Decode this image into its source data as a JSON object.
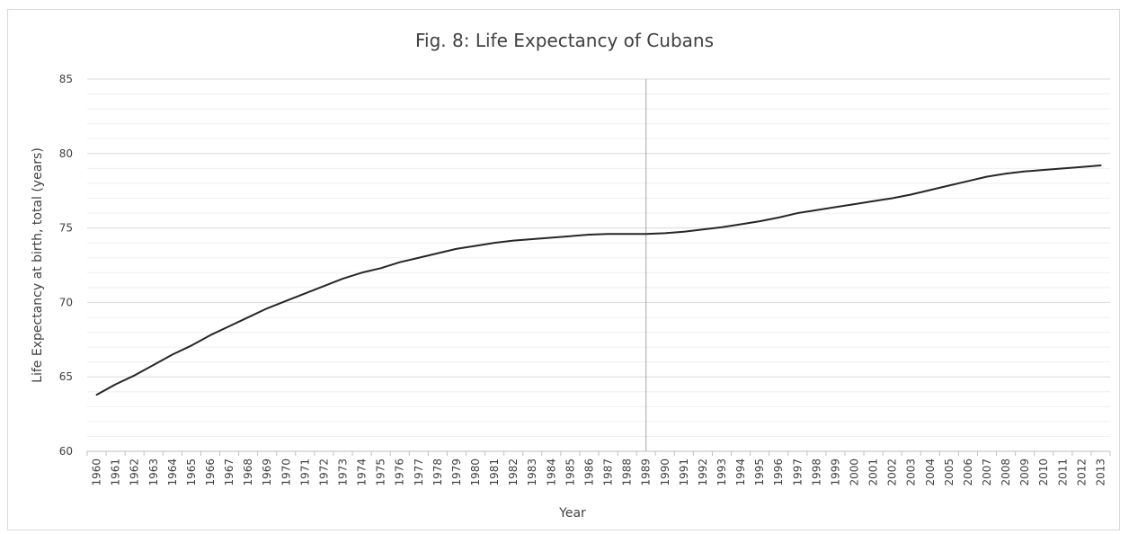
{
  "chart_data": {
    "type": "line",
    "title": "Fig. 8: Life Expectancy of Cubans",
    "xlabel": "Year",
    "ylabel": "Life Expectancy at birth, total (years)",
    "ylim": [
      60,
      85
    ],
    "y_ticks": [
      "60",
      "65",
      "70",
      "75",
      "80",
      "85"
    ],
    "y_minor_step": 1,
    "grid": true,
    "legend": "none",
    "reference_line_x": "1989",
    "line_color": "#262626",
    "x": [
      "1960",
      "1961",
      "1962",
      "1963",
      "1964",
      "1965",
      "1966",
      "1967",
      "1968",
      "1969",
      "1970",
      "1971",
      "1972",
      "1973",
      "1974",
      "1975",
      "1976",
      "1977",
      "1978",
      "1979",
      "1980",
      "1981",
      "1982",
      "1983",
      "1984",
      "1985",
      "1986",
      "1987",
      "1988",
      "1989",
      "1990",
      "1991",
      "1992",
      "1993",
      "1994",
      "1995",
      "1996",
      "1997",
      "1998",
      "1999",
      "2000",
      "2001",
      "2002",
      "2003",
      "2004",
      "2005",
      "2006",
      "2007",
      "2008",
      "2009",
      "2010",
      "2011",
      "2012",
      "2013"
    ],
    "series": [
      {
        "values": [
          63.8,
          64.5,
          65.1,
          65.8,
          66.5,
          67.1,
          67.8,
          68.4,
          69.0,
          69.6,
          70.1,
          70.6,
          71.1,
          71.6,
          72.0,
          72.3,
          72.7,
          73.0,
          73.3,
          73.6,
          73.8,
          74.0,
          74.15,
          74.25,
          74.35,
          74.45,
          74.55,
          74.6,
          74.6,
          74.6,
          74.65,
          74.75,
          74.9,
          75.05,
          75.25,
          75.45,
          75.7,
          76.0,
          76.2,
          76.4,
          76.6,
          76.8,
          77.0,
          77.25,
          77.55,
          77.85,
          78.15,
          78.45,
          78.65,
          78.8,
          78.9,
          79.0,
          79.1,
          79.2
        ]
      }
    ]
  }
}
